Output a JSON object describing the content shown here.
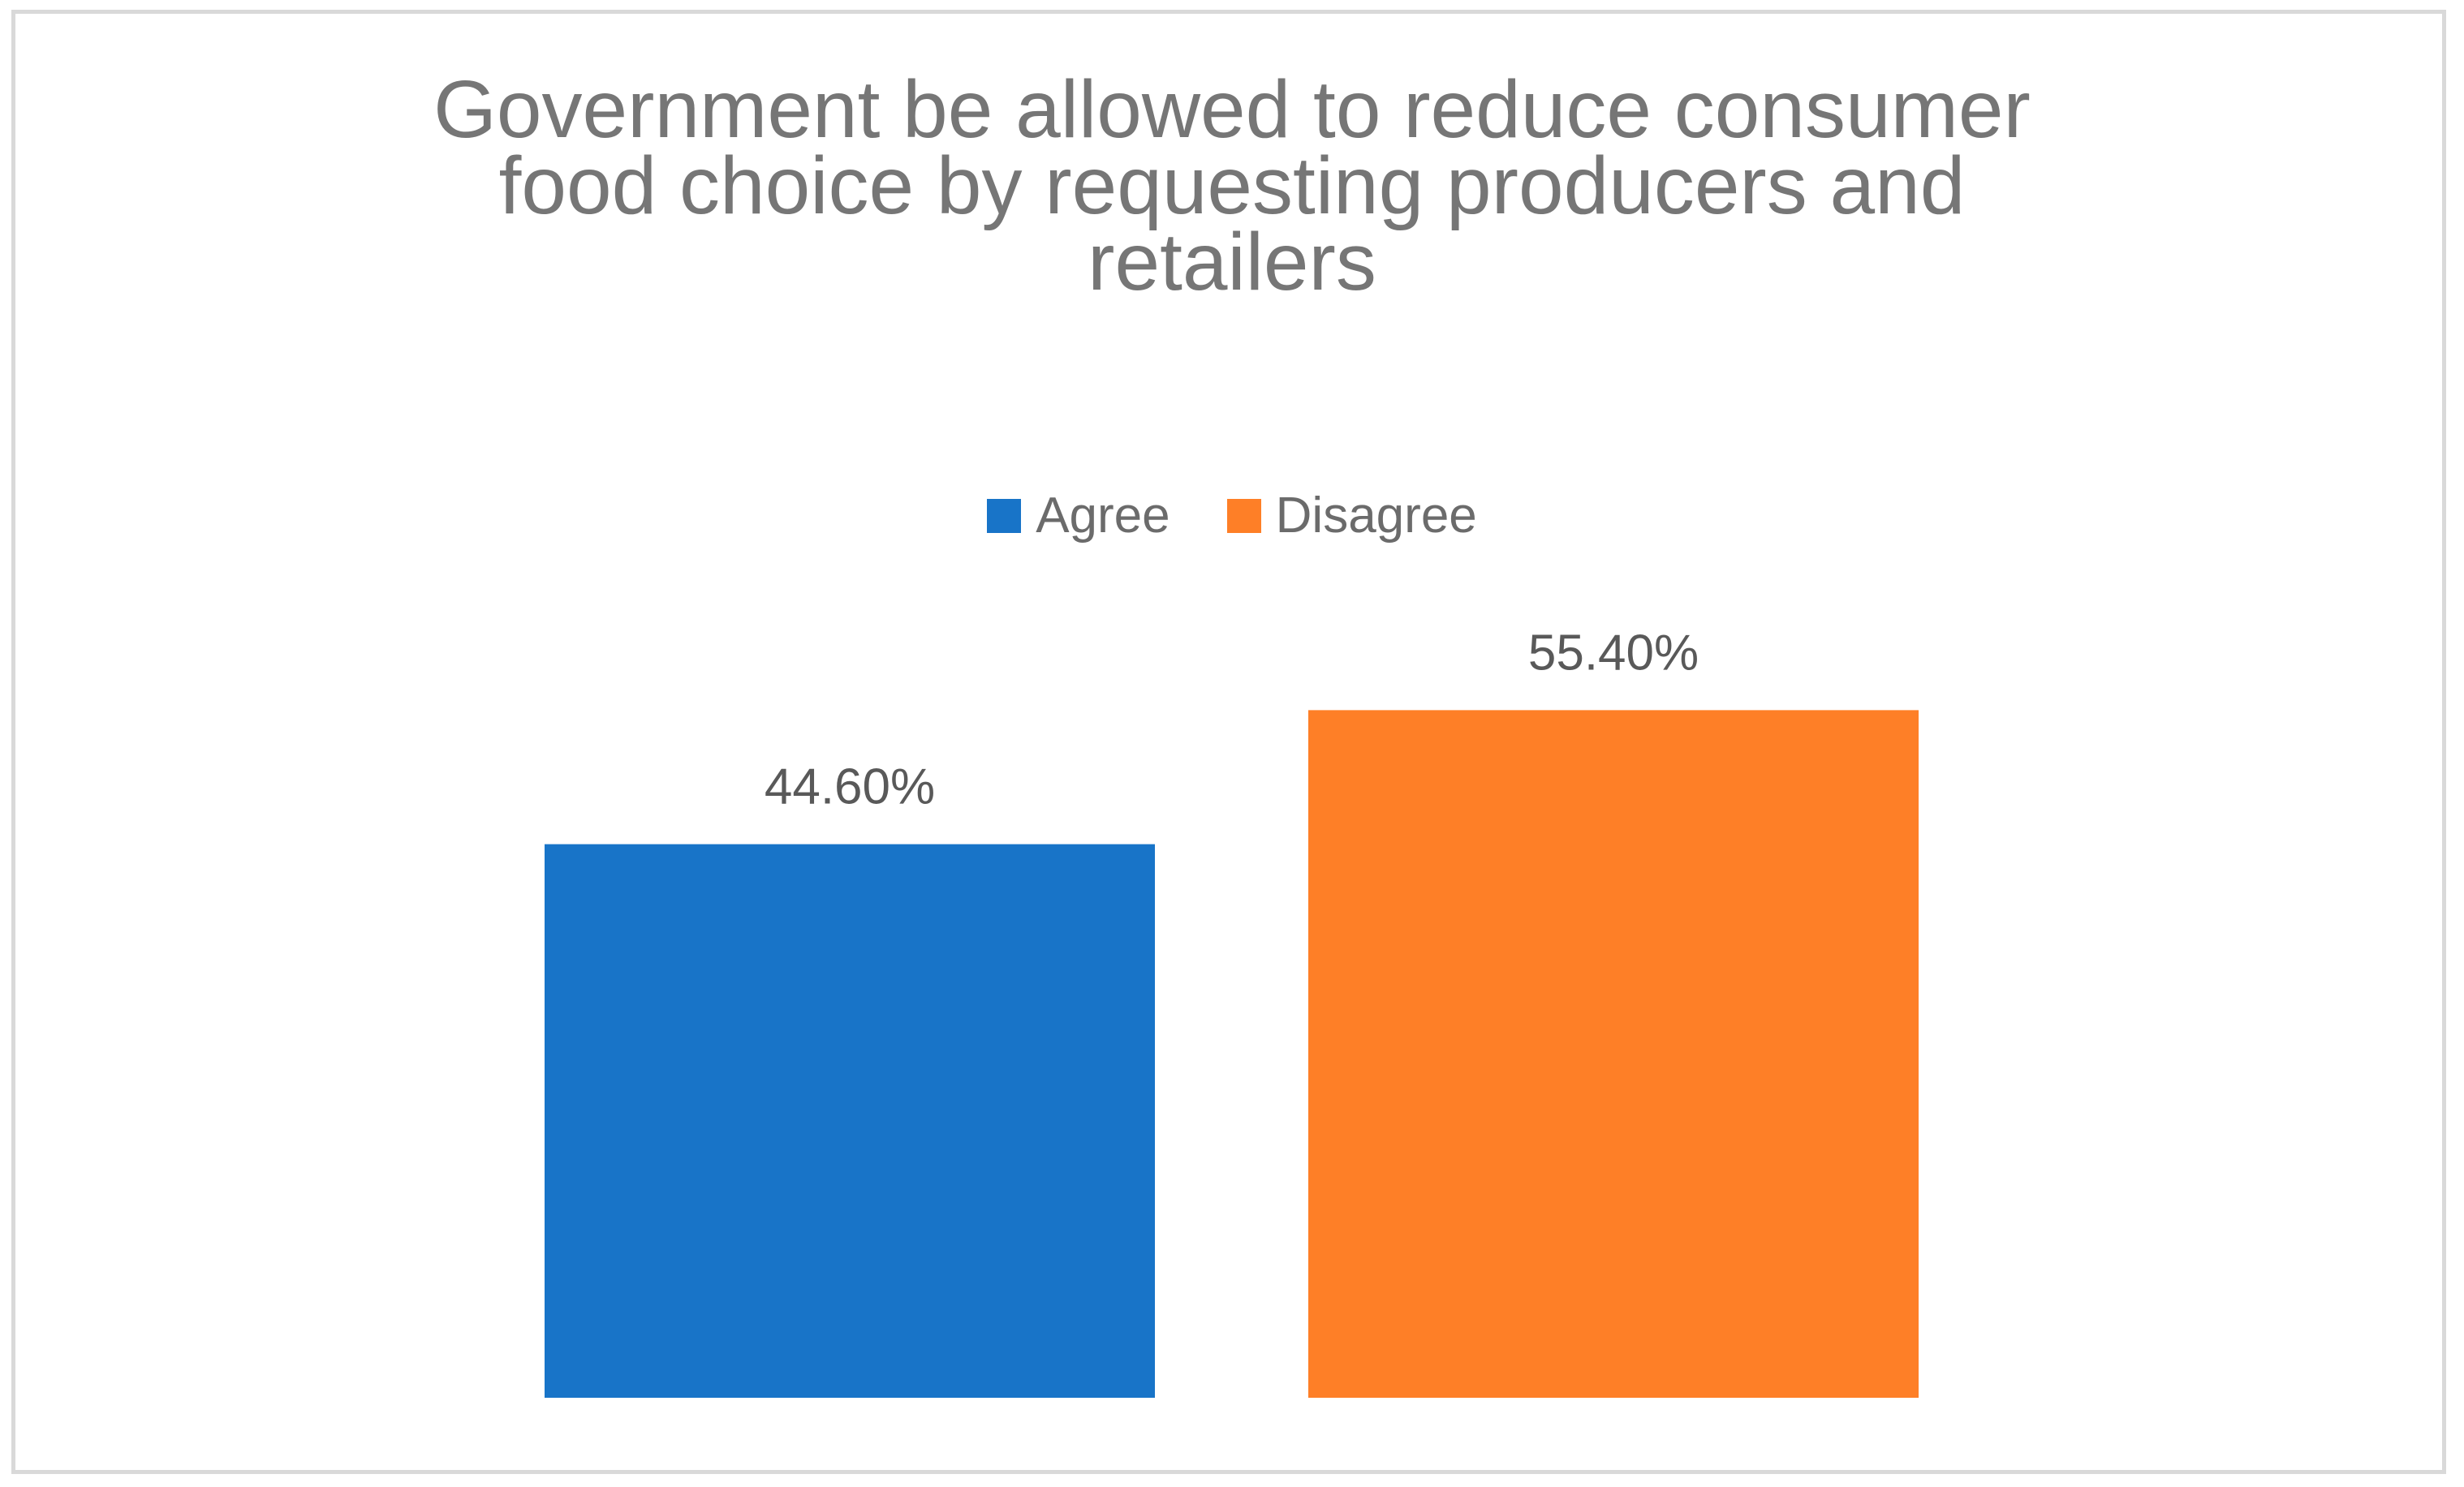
{
  "chart_data": {
    "type": "bar",
    "title": "Government be allowed to reduce consumer food choice by requesting producers and retailers",
    "title_lines": [
      "Government be allowed to reduce consumer",
      "food choice by requesting producers and",
      "retailers"
    ],
    "categories": [
      "Agree",
      "Disagree"
    ],
    "values": [
      44.6,
      55.4
    ],
    "value_labels": [
      "44.60%",
      "55.40%"
    ],
    "colors": [
      "#1874c8",
      "#fe7f27"
    ],
    "legend": {
      "entries": [
        {
          "label": "Agree",
          "color": "#1874c8"
        },
        {
          "label": "Disagree",
          "color": "#fe7f27"
        }
      ],
      "placement": "top"
    },
    "xlabel": "",
    "ylabel": "",
    "ylim": [
      0,
      66
    ],
    "grid": false
  }
}
